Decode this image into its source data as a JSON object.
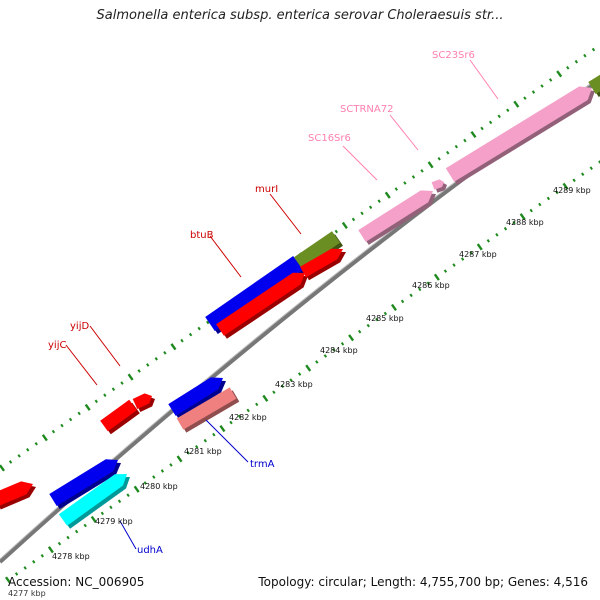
{
  "title": "Salmonella enterica subsp. enterica serovar Choleraesuis str...",
  "footer": {
    "accession": "Accession: NC_006905",
    "topology": "Topology: circular; Length: 4,755,700 bp; Genes: 4,516",
    "cutoff_label": "4277 kbp"
  },
  "colors": {
    "backbone": "#777777",
    "tick": "#1e8a1e",
    "red": "#ff0000",
    "blue": "#0000ee",
    "cyan": "#00ffff",
    "salmon": "#f08080",
    "olive": "#6b8e23",
    "pink": "#f4a0c8",
    "red_label": "#cc0000",
    "blue_label": "#0000cc",
    "pink_label": "#ff80b0"
  },
  "ticks": [
    {
      "label": "4278 kbp"
    },
    {
      "label": "4279 kbp"
    },
    {
      "label": "4280 kbp"
    },
    {
      "label": "4281 kbp"
    },
    {
      "label": "4282 kbp"
    },
    {
      "label": "4283 kbp"
    },
    {
      "label": "4284 kbp"
    },
    {
      "label": "4285 kbp"
    },
    {
      "label": "4286 kbp"
    },
    {
      "label": "4287 kbp"
    },
    {
      "label": "4288 kbp"
    },
    {
      "label": "4289 kbp"
    }
  ],
  "gene_labels": [
    {
      "text": "yijC",
      "color": "red_label"
    },
    {
      "text": "yijD",
      "color": "red_label"
    },
    {
      "text": "btuB",
      "color": "red_label"
    },
    {
      "text": "murI",
      "color": "red_label"
    },
    {
      "text": "SC16Sr6",
      "color": "pink_label"
    },
    {
      "text": "SCTRNA72",
      "color": "pink_label"
    },
    {
      "text": "SC23Sr6",
      "color": "pink_label"
    },
    {
      "text": "trmA",
      "color": "blue_label"
    },
    {
      "text": "udhA",
      "color": "blue_label"
    }
  ]
}
